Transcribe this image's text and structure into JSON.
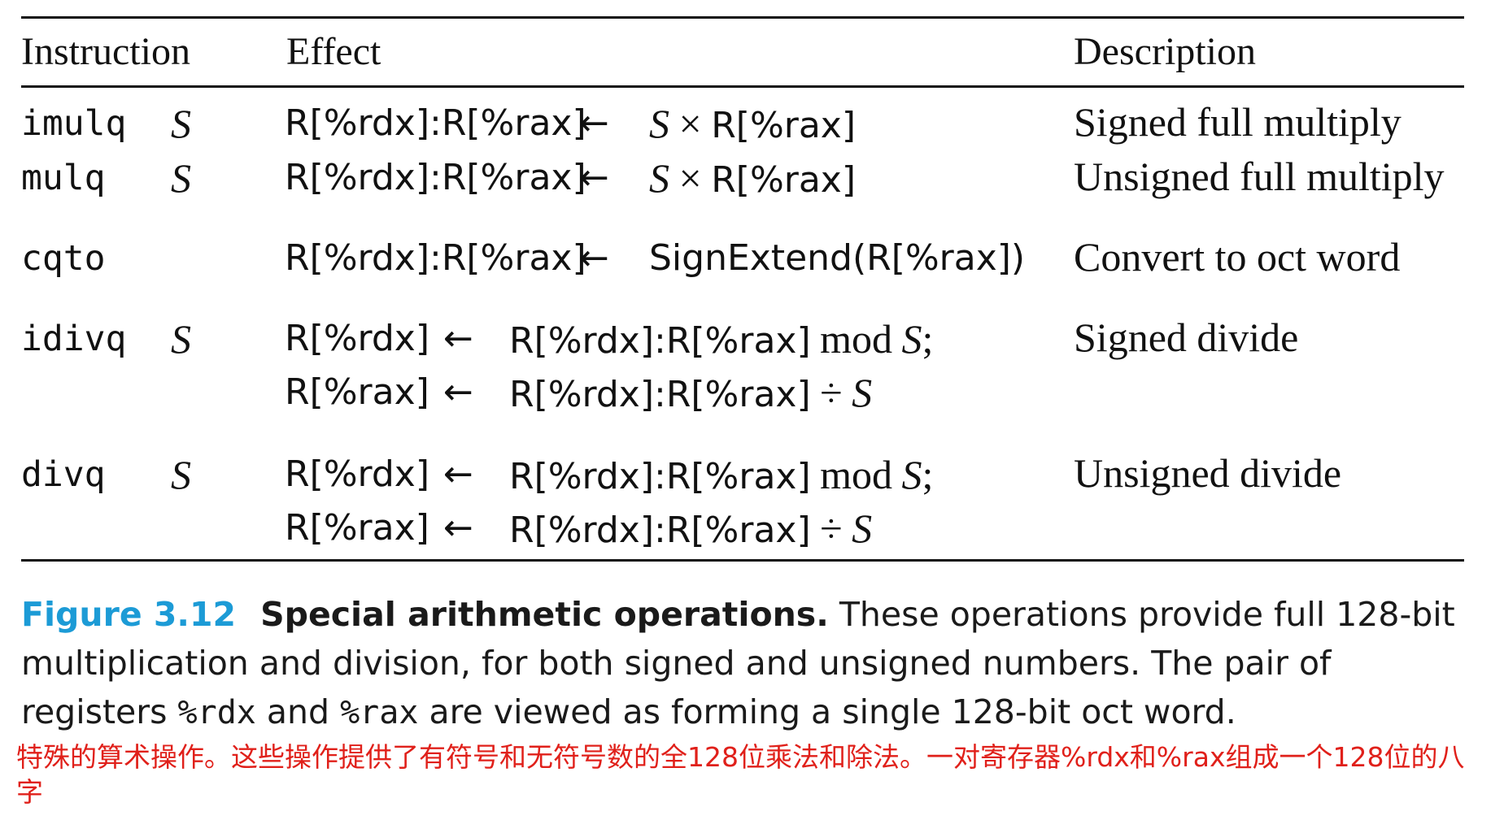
{
  "header": {
    "instruction": "Instruction",
    "effect": "Effect",
    "description": "Description"
  },
  "rows": [
    {
      "instr": "imulq",
      "operand": "S",
      "lines": [
        {
          "lhs": "R[%rdx]:R[%rax]",
          "arrow": "←",
          "rhs_italic": "S",
          "rhs_op": "×",
          "rhs_rest": "R[%rax]"
        }
      ],
      "desc": "Signed full multiply"
    },
    {
      "instr": "mulq",
      "operand": "S",
      "lines": [
        {
          "lhs": "R[%rdx]:R[%rax]",
          "arrow": "←",
          "rhs_italic": "S",
          "rhs_op": "×",
          "rhs_rest": "R[%rax]"
        }
      ],
      "desc": "Unsigned full multiply"
    },
    {
      "instr": "cqto",
      "operand": "",
      "lines": [
        {
          "lhs": "R[%rdx]:R[%rax]",
          "arrow": "←",
          "rhs_rest": "SignExtend(R[%rax])"
        }
      ],
      "desc": "Convert to oct word"
    },
    {
      "instr": "idivq",
      "operand": "S",
      "lines": [
        {
          "lhs": "R[%rdx]",
          "arrow": "←",
          "rhs_rest": "R[%rdx]:R[%rax]",
          "rhs_op": "mod",
          "rhs_italic": "S",
          "rhs_tail": ";"
        },
        {
          "lhs": "R[%rax]",
          "arrow": "←",
          "rhs_rest": "R[%rdx]:R[%rax]",
          "rhs_op": "÷",
          "rhs_italic": "S"
        }
      ],
      "desc": "Signed divide"
    },
    {
      "instr": "divq",
      "operand": "S",
      "lines": [
        {
          "lhs": "R[%rdx]",
          "arrow": "←",
          "rhs_rest": "R[%rdx]:R[%rax]",
          "rhs_op": "mod",
          "rhs_italic": "S",
          "rhs_tail": ";"
        },
        {
          "lhs": "R[%rax]",
          "arrow": "←",
          "rhs_rest": "R[%rdx]:R[%rax]",
          "rhs_op": "÷",
          "rhs_italic": "S"
        }
      ],
      "desc": "Unsigned divide"
    }
  ],
  "caption": {
    "label": "Figure 3.12",
    "title": "Special arithmetic operations.",
    "text_1": "These operations provide full 128-bit multiplication and division, for both signed and unsigned numbers. The pair of registers",
    "reg_1": "%rdx",
    "text_2": "and",
    "reg_2": "%rax",
    "text_3": "are viewed as forming a single 128-bit oct word."
  },
  "translation_note": "特殊的算术操作。这些操作提供了有符号和无符号数的全128位乘法和除法。一对寄存器%rdx和%rax组成一个128位的八字",
  "colors": {
    "figure_label": "#1c9bd6",
    "translation_note": "#e0201a",
    "text": "#111111"
  }
}
